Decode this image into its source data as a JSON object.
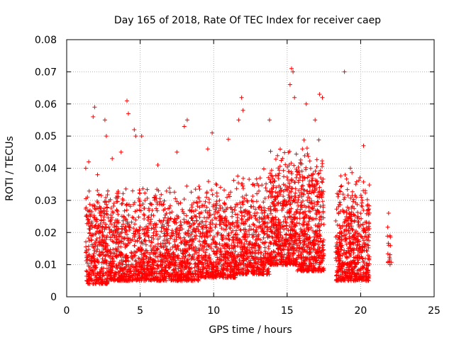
{
  "chart_data": {
    "type": "scatter",
    "title": "Day 165 of 2018, Rate Of TEC Index for receiver caep",
    "xlabel": "GPS time / hours",
    "ylabel": "ROTI / TECUs",
    "xlim": [
      0,
      25
    ],
    "ylim": [
      0,
      0.08
    ],
    "xticks": [
      0,
      5,
      10,
      15,
      20,
      25
    ],
    "xtick_labels": [
      "0",
      "5",
      "10",
      "15",
      "20",
      "25"
    ],
    "yticks": [
      0,
      0.01,
      0.02,
      0.03,
      0.04,
      0.05,
      0.06,
      0.07,
      0.08
    ],
    "ytick_labels": [
      "0",
      "0.01",
      "0.02",
      "0.03",
      "0.04",
      "0.05",
      "0.06",
      "0.07",
      "0.08"
    ],
    "grid": true,
    "marker": "+",
    "color": "#ff0000",
    "series": [
      {
        "name": "ROTI",
        "points": [
          [
            1.3,
            0.04
          ],
          [
            1.5,
            0.042
          ],
          [
            1.6,
            0.025
          ],
          [
            1.8,
            0.056
          ],
          [
            1.9,
            0.059
          ],
          [
            2.1,
            0.038
          ],
          [
            2.6,
            0.055
          ],
          [
            2.7,
            0.05
          ],
          [
            3.1,
            0.043
          ],
          [
            3.7,
            0.045
          ],
          [
            4.1,
            0.061
          ],
          [
            4.2,
            0.057
          ],
          [
            4.6,
            0.052
          ],
          [
            4.7,
            0.05
          ],
          [
            5.1,
            0.05
          ],
          [
            6.2,
            0.041
          ],
          [
            7.5,
            0.045
          ],
          [
            8.0,
            0.053
          ],
          [
            8.2,
            0.055
          ],
          [
            9.6,
            0.046
          ],
          [
            9.9,
            0.051
          ],
          [
            11.0,
            0.049
          ],
          [
            11.7,
            0.055
          ],
          [
            11.9,
            0.062
          ],
          [
            12.0,
            0.058
          ],
          [
            13.8,
            0.055
          ],
          [
            15.2,
            0.066
          ],
          [
            15.3,
            0.071
          ],
          [
            15.4,
            0.07
          ],
          [
            15.5,
            0.062
          ],
          [
            16.3,
            0.06
          ],
          [
            16.9,
            0.055
          ],
          [
            17.2,
            0.063
          ],
          [
            17.4,
            0.062
          ],
          [
            18.9,
            0.07
          ],
          [
            19.3,
            0.04
          ],
          [
            20.2,
            0.047
          ],
          [
            21.9,
            0.026
          ],
          [
            22.0,
            0.019
          ],
          [
            22.0,
            0.01
          ]
        ],
        "bands": [
          {
            "x": [
              1.3,
              3.0
            ],
            "ymin": 0.004,
            "ymax": 0.036,
            "count": 380
          },
          {
            "x": [
              3.0,
              6.0
            ],
            "ymin": 0.005,
            "ymax": 0.037,
            "count": 620
          },
          {
            "x": [
              6.0,
              9.0
            ],
            "ymin": 0.005,
            "ymax": 0.036,
            "count": 620
          },
          {
            "x": [
              9.0,
              11.5
            ],
            "ymin": 0.006,
            "ymax": 0.038,
            "count": 520
          },
          {
            "x": [
              11.5,
              13.8
            ],
            "ymin": 0.007,
            "ymax": 0.04,
            "count": 480
          },
          {
            "x": [
              13.8,
              15.7
            ],
            "ymin": 0.01,
            "ymax": 0.048,
            "count": 520
          },
          {
            "x": [
              15.7,
              17.5
            ],
            "ymin": 0.008,
            "ymax": 0.05,
            "count": 480
          },
          {
            "x": [
              18.3,
              20.6
            ],
            "ymin": 0.005,
            "ymax": 0.04,
            "count": 560
          },
          {
            "x": [
              21.8,
              22.1
            ],
            "ymin": 0.01,
            "ymax": 0.024,
            "count": 14
          }
        ]
      }
    ]
  }
}
